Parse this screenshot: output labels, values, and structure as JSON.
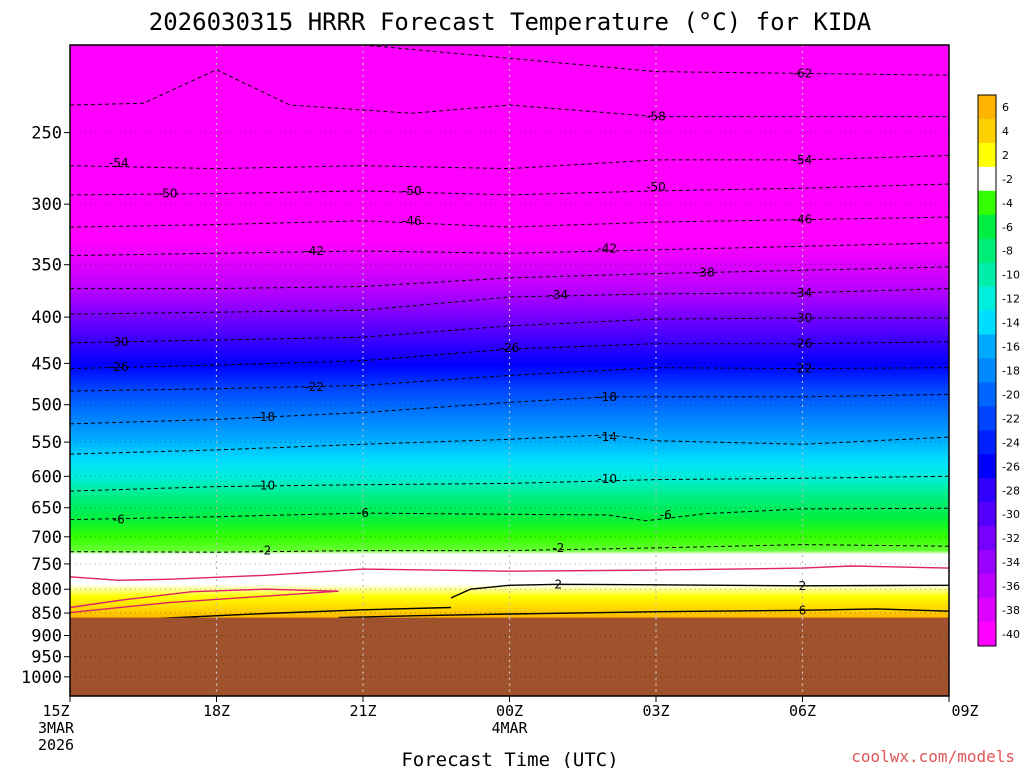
{
  "chart_data": {
    "type": "heatmap",
    "title": "2026030315 HRRR Forecast Temperature (°C) for KIDA",
    "xlabel": "Forecast Time (UTC)",
    "credit": "coolwx.com/models",
    "x_ticks": [
      {
        "label": "15Z",
        "sub1": "3MAR",
        "sub2": "2026",
        "hour": 0
      },
      {
        "label": "18Z",
        "sub1": "",
        "sub2": "",
        "hour": 3
      },
      {
        "label": "21Z",
        "sub1": "",
        "sub2": "",
        "hour": 6
      },
      {
        "label": "00Z",
        "sub1": "4MAR",
        "sub2": "",
        "hour": 9
      },
      {
        "label": "03Z",
        "sub1": "",
        "sub2": "",
        "hour": 12
      },
      {
        "label": "06Z",
        "sub1": "",
        "sub2": "",
        "hour": 15
      },
      {
        "label": "09Z",
        "sub1": "",
        "sub2": "",
        "hour": 18
      }
    ],
    "x_range_hours": [
      0,
      18
    ],
    "y_axis": {
      "scale": "log",
      "reversed": true,
      "range_hpa": [
        1050,
        200
      ],
      "ticks": [
        250,
        300,
        350,
        400,
        450,
        500,
        550,
        600,
        650,
        700,
        750,
        800,
        850,
        900,
        950,
        1000
      ]
    },
    "grid": true,
    "colorbar": {
      "placement": "right",
      "levels": [
        6,
        4,
        2,
        -2,
        -4,
        -6,
        -8,
        -10,
        -12,
        -14,
        -16,
        -18,
        -20,
        -22,
        -24,
        -26,
        -28,
        -30,
        -32,
        -34,
        -36,
        -38,
        -40
      ],
      "colors": [
        "#ffb400",
        "#ffd000",
        "#ffff00",
        "#ffffff",
        "#33ff00",
        "#00ee44",
        "#00ee77",
        "#00eeaa",
        "#00eedd",
        "#00ddff",
        "#00aaff",
        "#0088ff",
        "#0066ff",
        "#0044ff",
        "#0022ff",
        "#0000ff",
        "#3300ff",
        "#5500ff",
        "#7700ff",
        "#9900ff",
        "#bb00ff",
        "#dd00ff",
        "#ff00ff"
      ]
    },
    "ground_pressure_hpa": 860,
    "ground_color": "#a0522d",
    "contours": [
      {
        "level": -62,
        "points": [
          [
            6,
            200
          ],
          [
            12,
            214
          ],
          [
            18,
            216
          ]
        ],
        "labels": [
          [
            15,
            215
          ]
        ]
      },
      {
        "level": -58,
        "points": [
          [
            0,
            233
          ],
          [
            1.5,
            232
          ],
          [
            3,
            213
          ],
          [
            4.5,
            233
          ],
          [
            7,
            238
          ],
          [
            9,
            233
          ],
          [
            12,
            240
          ],
          [
            18,
            240
          ]
        ],
        "labels": [
          [
            12,
            240
          ]
        ]
      },
      {
        "level": -54,
        "points": [
          [
            0,
            272
          ],
          [
            3,
            274
          ],
          [
            6,
            272
          ],
          [
            9,
            274
          ],
          [
            12,
            268
          ],
          [
            15,
            268
          ],
          [
            18,
            265
          ]
        ],
        "labels": [
          [
            1,
            270
          ],
          [
            15,
            268
          ]
        ]
      },
      {
        "level": -50,
        "points": [
          [
            0,
            293
          ],
          [
            3,
            292
          ],
          [
            6,
            290
          ],
          [
            9,
            293
          ],
          [
            12,
            290
          ],
          [
            15,
            288
          ],
          [
            18,
            285
          ]
        ],
        "labels": [
          [
            2,
            292
          ],
          [
            7,
            290
          ],
          [
            12,
            287
          ]
        ]
      },
      {
        "level": -46,
        "points": [
          [
            0,
            318
          ],
          [
            3,
            316
          ],
          [
            6,
            313
          ],
          [
            9,
            318
          ],
          [
            12,
            314
          ],
          [
            15,
            312
          ],
          [
            18,
            310
          ]
        ],
        "labels": [
          [
            7,
            313
          ],
          [
            15,
            312
          ]
        ]
      },
      {
        "level": -42,
        "points": [
          [
            0,
            342
          ],
          [
            3,
            340
          ],
          [
            6,
            338
          ],
          [
            9,
            340
          ],
          [
            12,
            337
          ],
          [
            15,
            334
          ],
          [
            18,
            331
          ]
        ],
        "labels": [
          [
            5,
            338
          ],
          [
            11,
            336
          ]
        ]
      },
      {
        "level": -38,
        "points": [
          [
            0,
            372
          ],
          [
            3,
            372
          ],
          [
            6,
            370
          ],
          [
            9,
            362
          ],
          [
            12,
            358
          ],
          [
            15,
            355
          ],
          [
            18,
            352
          ]
        ],
        "labels": [
          [
            13,
            357
          ]
        ]
      },
      {
        "level": -34,
        "points": [
          [
            0,
            397
          ],
          [
            3,
            395
          ],
          [
            6,
            393
          ],
          [
            9,
            380
          ],
          [
            12,
            377
          ],
          [
            15,
            376
          ],
          [
            18,
            372
          ]
        ],
        "labels": [
          [
            10,
            378
          ],
          [
            15,
            376
          ]
        ]
      },
      {
        "level": -30,
        "points": [
          [
            0,
            427
          ],
          [
            3,
            424
          ],
          [
            6,
            421
          ],
          [
            9,
            409
          ],
          [
            12,
            402
          ],
          [
            15,
            401
          ],
          [
            18,
            401
          ]
        ],
        "labels": [
          [
            1,
            426
          ],
          [
            15,
            401
          ]
        ]
      },
      {
        "level": -26,
        "points": [
          [
            0,
            456
          ],
          [
            3,
            452
          ],
          [
            6,
            447
          ],
          [
            9,
            434
          ],
          [
            12,
            428
          ],
          [
            15,
            428
          ],
          [
            18,
            426
          ]
        ],
        "labels": [
          [
            1,
            454
          ],
          [
            9,
            433
          ],
          [
            15,
            428
          ]
        ]
      },
      {
        "level": -22,
        "points": [
          [
            0,
            483
          ],
          [
            3,
            480
          ],
          [
            6,
            476
          ],
          [
            9,
            464
          ],
          [
            12,
            455
          ],
          [
            15,
            456
          ],
          [
            18,
            455
          ]
        ],
        "labels": [
          [
            5,
            478
          ],
          [
            15,
            456
          ]
        ]
      },
      {
        "level": -18,
        "points": [
          [
            0,
            525
          ],
          [
            3,
            519
          ],
          [
            6,
            510
          ],
          [
            9,
            497
          ],
          [
            11,
            490
          ],
          [
            12,
            490
          ],
          [
            15,
            490
          ],
          [
            18,
            487
          ]
        ],
        "labels": [
          [
            4,
            516
          ],
          [
            11,
            490
          ]
        ]
      },
      {
        "level": -14,
        "points": [
          [
            0,
            567
          ],
          [
            3,
            561
          ],
          [
            6,
            553
          ],
          [
            9,
            546
          ],
          [
            11,
            540
          ],
          [
            12,
            548
          ],
          [
            15,
            553
          ],
          [
            18,
            543
          ]
        ],
        "labels": [
          [
            11,
            543
          ]
        ]
      },
      {
        "level": -10,
        "points": [
          [
            0,
            623
          ],
          [
            3,
            616
          ],
          [
            6,
            613
          ],
          [
            9,
            611
          ],
          [
            12,
            605
          ],
          [
            15,
            603
          ],
          [
            18,
            600
          ]
        ],
        "labels": [
          [
            4,
            614
          ],
          [
            11,
            604
          ]
        ]
      },
      {
        "level": -6,
        "points": [
          [
            0,
            670
          ],
          [
            3,
            665
          ],
          [
            6,
            659
          ],
          [
            9,
            661
          ],
          [
            11,
            662
          ],
          [
            11.8,
            672
          ],
          [
            13,
            660
          ],
          [
            15,
            652
          ],
          [
            18,
            651
          ]
        ],
        "labels": [
          [
            1,
            670
          ],
          [
            6,
            659
          ],
          [
            12.2,
            662
          ]
        ]
      },
      {
        "level": -2,
        "points": [
          [
            0,
            727
          ],
          [
            3,
            728
          ],
          [
            6,
            725
          ],
          [
            9,
            725
          ],
          [
            12,
            720
          ],
          [
            15,
            714
          ],
          [
            18,
            717
          ]
        ],
        "labels": [
          [
            4,
            725
          ],
          [
            10,
            720
          ]
        ]
      },
      {
        "level": 2,
        "points": [
          [
            7.8,
            818
          ],
          [
            8.2,
            800
          ],
          [
            9,
            792
          ],
          [
            10,
            790
          ],
          [
            12,
            791
          ],
          [
            15,
            793
          ],
          [
            18,
            792
          ]
        ],
        "labels": [
          [
            10,
            790
          ],
          [
            15,
            793
          ]
        ]
      },
      {
        "level": 2,
        "points": [
          [
            1.8,
            862
          ],
          [
            4,
            851
          ],
          [
            6,
            843
          ],
          [
            7.8,
            838
          ]
        ],
        "labels": []
      },
      {
        "level": 6,
        "points": [
          [
            5.5,
            860
          ],
          [
            7,
            856
          ],
          [
            9,
            852
          ],
          [
            12,
            847
          ],
          [
            15,
            844
          ],
          [
            16.5,
            841
          ],
          [
            18,
            846
          ]
        ],
        "labels": [
          [
            15,
            844
          ]
        ]
      }
    ],
    "color_contours": [
      {
        "points": [
          [
            0,
            775
          ],
          [
            1,
            782
          ],
          [
            2,
            780
          ],
          [
            4,
            772
          ],
          [
            6,
            760
          ],
          [
            9,
            764
          ],
          [
            12,
            762
          ],
          [
            15,
            758
          ],
          [
            16,
            754
          ],
          [
            18,
            758
          ]
        ]
      },
      {
        "points": [
          [
            0,
            838
          ],
          [
            1,
            823
          ],
          [
            2.5,
            805
          ],
          [
            4,
            800
          ],
          [
            5.5,
            804
          ],
          [
            2,
            828
          ],
          [
            0,
            849
          ]
        ]
      }
    ]
  }
}
